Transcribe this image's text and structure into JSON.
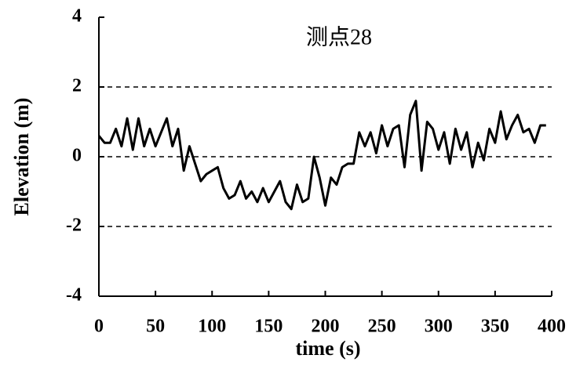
{
  "chart_data": {
    "type": "line",
    "title": "测点28",
    "x_label": "time (s)",
    "y_label": "Elevation (m)",
    "x": [
      0,
      5,
      10,
      15,
      20,
      25,
      30,
      35,
      40,
      45,
      50,
      55,
      60,
      65,
      70,
      75,
      80,
      85,
      90,
      95,
      100,
      105,
      110,
      115,
      120,
      125,
      130,
      135,
      140,
      145,
      150,
      155,
      160,
      165,
      170,
      175,
      180,
      185,
      190,
      195,
      200,
      205,
      210,
      215,
      220,
      225,
      230,
      235,
      240,
      245,
      250,
      255,
      260,
      265,
      270,
      275,
      280,
      285,
      290,
      295,
      300,
      305,
      310,
      315,
      320,
      325,
      330,
      335,
      340,
      345,
      350,
      355,
      360,
      365,
      370,
      375,
      380,
      385,
      390,
      395
    ],
    "series": [
      {
        "name": "测点28",
        "color": "#000000",
        "values": [
          0.6,
          0.4,
          0.4,
          0.8,
          0.3,
          1.1,
          0.2,
          1.1,
          0.3,
          0.8,
          0.3,
          0.7,
          1.1,
          0.3,
          0.8,
          -0.4,
          0.3,
          -0.2,
          -0.7,
          -0.5,
          -0.4,
          -0.3,
          -0.9,
          -1.2,
          -1.1,
          -0.7,
          -1.2,
          -1.0,
          -1.3,
          -0.9,
          -1.3,
          -1.0,
          -0.7,
          -1.3,
          -1.5,
          -0.8,
          -1.3,
          -1.2,
          0.0,
          -0.6,
          -1.4,
          -0.6,
          -0.8,
          -0.3,
          -0.2,
          -0.2,
          0.7,
          0.3,
          0.7,
          0.1,
          0.9,
          0.3,
          0.8,
          0.9,
          -0.3,
          1.2,
          1.6,
          -0.4,
          1.0,
          0.8,
          0.2,
          0.7,
          -0.2,
          0.8,
          0.2,
          0.7,
          -0.3,
          0.4,
          -0.1,
          0.8,
          0.4,
          1.3,
          0.5,
          0.9,
          1.2,
          0.7,
          0.8,
          0.4,
          0.9,
          0.9
        ]
      }
    ],
    "xlim": [
      0,
      400
    ],
    "xticks": [
      0,
      50,
      100,
      150,
      200,
      250,
      300,
      350,
      400
    ],
    "ylim": [
      -4,
      4
    ],
    "yticks": [
      -4,
      -2,
      0,
      2,
      4
    ],
    "grid": true
  }
}
